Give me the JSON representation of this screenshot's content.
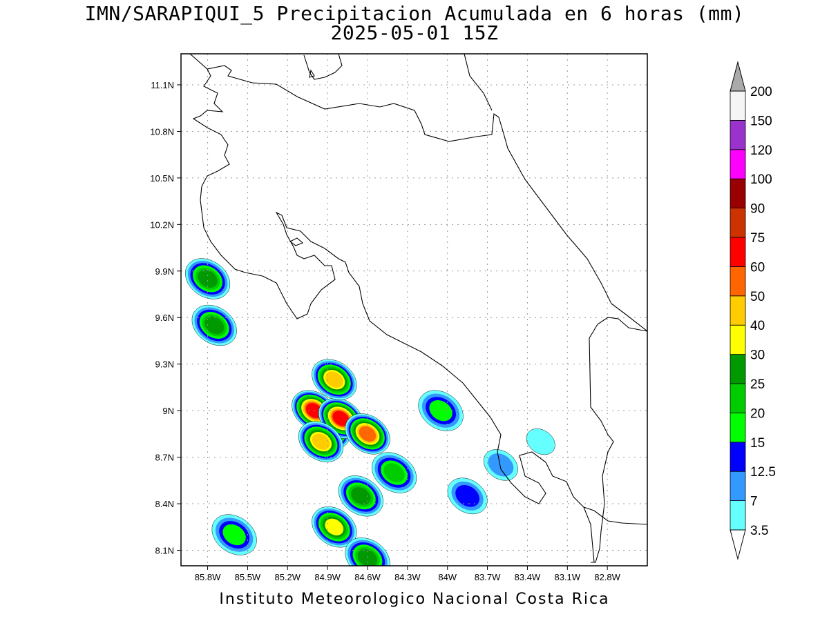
{
  "title": {
    "line1": "IMN/SARAPIQUI_5 Precipitacion Acumulada en 6 horas (mm)",
    "line2": "2025-05-01 15Z"
  },
  "footer": "Instituto Meteorologico Nacional Costa Rica",
  "map": {
    "lon_range": [
      -86.0,
      -82.5
    ],
    "lat_range": [
      8.0,
      11.3
    ],
    "lat_ticks": [
      "11.1N",
      "10.8N",
      "10.5N",
      "10.2N",
      "9.9N",
      "9.6N",
      "9.3N",
      "9N",
      "8.7N",
      "8.4N",
      "8.1N"
    ],
    "lon_ticks": [
      "85.8W",
      "85.5W",
      "85.2W",
      "84.9W",
      "84.6W",
      "84.3W",
      "84W",
      "83.7W",
      "83.4W",
      "83.1W",
      "82.8W"
    ],
    "grid": "dotted",
    "coastline_color": "#000000"
  },
  "colorbar": {
    "labels": [
      "3.5",
      "7",
      "12.5",
      "15",
      "20",
      "25",
      "30",
      "40",
      "50",
      "60",
      "75",
      "90",
      "100",
      "120",
      "150",
      "200"
    ],
    "colors": [
      "#ffffff",
      "#66ffff",
      "#3399ff",
      "#0000ff",
      "#00ff00",
      "#00cc00",
      "#009900",
      "#ffff00",
      "#ffcc00",
      "#ff6600",
      "#ff0000",
      "#cc3300",
      "#990000",
      "#ff00ff",
      "#9933cc",
      "#f5f5f5",
      "#aaaaaa"
    ]
  },
  "chart_data": {
    "type": "heatmap",
    "variable": "Precipitacion Acumulada en 6 horas (mm)",
    "units": "mm",
    "levels": [
      3.5,
      7,
      12.5,
      15,
      20,
      25,
      30,
      40,
      50,
      60,
      75,
      90,
      100,
      120,
      150,
      200
    ],
    "blobs": [
      {
        "lon": -84.9,
        "lat": 8.88,
        "level": 75
      },
      {
        "lon": -85.0,
        "lat": 9.0,
        "level": 60
      },
      {
        "lon": -84.8,
        "lat": 8.95,
        "level": 60
      },
      {
        "lon": -84.6,
        "lat": 8.85,
        "level": 50
      },
      {
        "lon": -84.95,
        "lat": 8.8,
        "level": 40
      },
      {
        "lon": -84.85,
        "lat": 9.2,
        "level": 40
      },
      {
        "lon": -84.85,
        "lat": 8.25,
        "level": 30
      },
      {
        "lon": -84.6,
        "lat": 8.05,
        "level": 25
      },
      {
        "lon": -85.75,
        "lat": 9.55,
        "level": 25
      },
      {
        "lon": -85.8,
        "lat": 9.85,
        "level": 25
      },
      {
        "lon": -84.65,
        "lat": 8.45,
        "level": 25
      },
      {
        "lon": -84.4,
        "lat": 8.6,
        "level": 20
      },
      {
        "lon": -84.05,
        "lat": 9.0,
        "level": 15
      },
      {
        "lon": -85.6,
        "lat": 8.2,
        "level": 15
      },
      {
        "lon": -83.85,
        "lat": 8.45,
        "level": 12.5
      },
      {
        "lon": -83.6,
        "lat": 8.65,
        "level": 7
      },
      {
        "lon": -83.3,
        "lat": 8.8,
        "level": 3.5
      }
    ]
  }
}
